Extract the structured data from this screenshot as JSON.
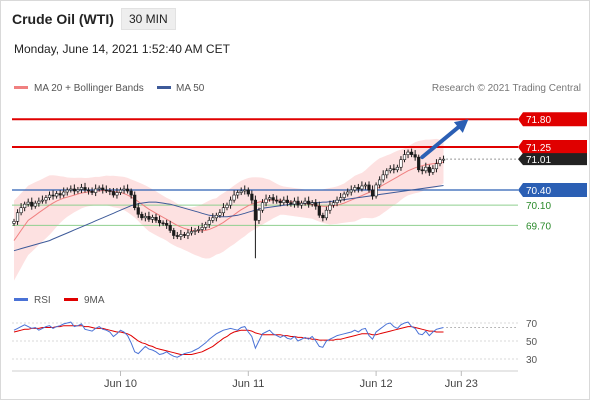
{
  "header": {
    "title": "Crude Oil (WTI)",
    "timeframe": "30 MIN",
    "datetime": "Monday, June 14, 2021 1:52:40 AM CET"
  },
  "colors": {
    "price_up": "#1a1a1a",
    "price_down": "#1a1a1a",
    "resistance": "#e00000",
    "support": "#8fcf8f",
    "pivot": "#2b5fb4",
    "bollinger_fill": "#fde1e1",
    "ma20": "#f08080",
    "ma50": "#3d5a99",
    "rsi": "#4a72d6",
    "rsi_ma": "#e00000",
    "arrow": "#2b5fb4"
  },
  "chart_data": [
    {
      "type": "candlestick",
      "title": "",
      "legend": [
        {
          "name": "MA 20 + Bollinger Bands",
          "color": "#f08080"
        },
        {
          "name": "MA 50",
          "color": "#3d5a99"
        }
      ],
      "credit": "Research © 2021 Trading Central",
      "x_tick_labels": [
        "Jun 10",
        "Jun 11",
        "Jun 12",
        "Jun 23"
      ],
      "x_ticks_index": [
        30,
        66,
        102,
        126
      ],
      "x_count": 128,
      "ylim": [
        68.6,
        72.2
      ],
      "current_price": "71.01",
      "levels": [
        {
          "label": "71.80",
          "value": 71.8,
          "kind": "resistance"
        },
        {
          "label": "71.25",
          "value": 71.25,
          "kind": "resistance"
        },
        {
          "label": "70.40",
          "value": 70.4,
          "kind": "pivot"
        },
        {
          "label": "70.10",
          "value": 70.1,
          "kind": "support"
        },
        {
          "label": "69.70",
          "value": 69.7,
          "kind": "support"
        }
      ],
      "arrow": {
        "from_index": 115,
        "from_value": 71.05,
        "to_index": 128,
        "to_value": 71.8
      },
      "close": [
        69.78,
        69.95,
        70.05,
        70.12,
        70.16,
        70.08,
        70.14,
        70.18,
        70.2,
        70.25,
        70.3,
        70.28,
        70.33,
        70.3,
        70.36,
        70.4,
        70.42,
        70.38,
        70.41,
        70.45,
        70.4,
        70.38,
        70.35,
        70.42,
        70.44,
        70.4,
        70.39,
        70.37,
        70.3,
        70.35,
        70.4,
        70.42,
        70.38,
        70.3,
        70.05,
        69.92,
        69.85,
        69.88,
        69.82,
        69.86,
        69.8,
        69.75,
        69.74,
        69.7,
        69.6,
        69.5,
        69.48,
        69.52,
        69.5,
        69.55,
        69.58,
        69.6,
        69.62,
        69.66,
        69.72,
        69.8,
        69.85,
        69.9,
        69.95,
        70.05,
        70.1,
        70.2,
        70.3,
        70.35,
        70.38,
        70.4,
        70.32,
        70.2,
        69.8,
        70.0,
        70.15,
        70.22,
        70.25,
        70.2,
        70.18,
        70.15,
        70.2,
        70.15,
        70.12,
        70.18,
        70.1,
        70.14,
        70.18,
        70.12,
        70.15,
        70.08,
        69.9,
        69.85,
        70.0,
        70.1,
        70.15,
        70.2,
        70.25,
        70.32,
        70.36,
        70.4,
        70.45,
        70.42,
        70.48,
        70.5,
        70.4,
        70.28,
        70.5,
        70.6,
        70.7,
        70.78,
        70.82,
        70.8,
        70.85,
        71.0,
        71.1,
        71.15,
        71.1,
        71.05,
        70.8,
        70.78,
        70.85,
        70.75,
        70.82,
        70.92,
        71.0,
        71.01
      ],
      "series": [
        {
          "name": "MA 20 + Bollinger Bands",
          "values": [
            69.4,
            69.5,
            69.6,
            69.7,
            69.8,
            69.85,
            69.9,
            69.95,
            70.0,
            70.05,
            70.1,
            70.14,
            70.18,
            70.21,
            70.24,
            70.26,
            70.28,
            70.3,
            70.32,
            70.34,
            70.35,
            70.36,
            70.37,
            70.38,
            70.38,
            70.39,
            70.39,
            70.38,
            70.37,
            70.36,
            70.35,
            70.33,
            70.3,
            70.26,
            70.22,
            70.17,
            70.12,
            70.07,
            70.02,
            69.98,
            69.94,
            69.9,
            69.86,
            69.82,
            69.78,
            69.74,
            69.7,
            69.67,
            69.64,
            69.62,
            69.6,
            69.59,
            69.59,
            69.59,
            69.6,
            69.62,
            69.65,
            69.68,
            69.72,
            69.76,
            69.81,
            69.86,
            69.91,
            69.96,
            70.01,
            70.05,
            70.09,
            70.12,
            70.14,
            70.16,
            70.18,
            70.19,
            70.2,
            70.2,
            70.2,
            70.2,
            70.19,
            70.18,
            70.17,
            70.16,
            70.15,
            70.14,
            70.13,
            70.12,
            70.11,
            70.1,
            70.09,
            70.08,
            70.08,
            70.08,
            70.09,
            70.1,
            70.12,
            70.14,
            70.17,
            70.2,
            70.23,
            70.26,
            70.29,
            70.32,
            70.35,
            70.38,
            70.42,
            70.46,
            70.5,
            70.54,
            70.58,
            70.62,
            70.66,
            70.7,
            70.74,
            70.78,
            70.81,
            70.84,
            70.86,
            70.88,
            70.9,
            70.91,
            70.92,
            70.93,
            70.94,
            70.95
          ]
        },
        {
          "name": "MA 50",
          "values": [
            69.2,
            69.22,
            69.24,
            69.26,
            69.28,
            69.3,
            69.32,
            69.34,
            69.36,
            69.38,
            69.4,
            69.43,
            69.46,
            69.49,
            69.52,
            69.55,
            69.58,
            69.61,
            69.64,
            69.67,
            69.7,
            69.73,
            69.76,
            69.79,
            69.82,
            69.85,
            69.88,
            69.91,
            69.94,
            69.97,
            70.0,
            70.03,
            70.06,
            70.09,
            70.11,
            70.13,
            70.14,
            70.15,
            70.16,
            70.16,
            70.16,
            70.15,
            70.14,
            70.13,
            70.12,
            70.1,
            70.08,
            70.06,
            70.04,
            70.02,
            70.0,
            69.98,
            69.96,
            69.94,
            69.92,
            69.9,
            69.89,
            69.88,
            69.87,
            69.87,
            69.87,
            69.88,
            69.89,
            69.9,
            69.92,
            69.94,
            69.96,
            69.98,
            70.0,
            70.02,
            70.04,
            70.05,
            70.06,
            70.07,
            70.08,
            70.09,
            70.1,
            70.11,
            70.12,
            70.12,
            70.13,
            70.13,
            70.14,
            70.14,
            70.15,
            70.15,
            70.15,
            70.16,
            70.16,
            70.17,
            70.18,
            70.19,
            70.2,
            70.21,
            70.22,
            70.23,
            70.24,
            70.25,
            70.26,
            70.27,
            70.28,
            70.29,
            70.3,
            70.31,
            70.32,
            70.33,
            70.34,
            70.35,
            70.36,
            70.37,
            70.38,
            70.39,
            70.4,
            70.41,
            70.42,
            70.43,
            70.44,
            70.45,
            70.46,
            70.47,
            70.48,
            70.49
          ]
        }
      ]
    },
    {
      "type": "line",
      "title": "",
      "legend": [
        {
          "name": "RSI",
          "color": "#4a72d6"
        },
        {
          "name": "9MA",
          "color": "#e00000"
        }
      ],
      "ylim": [
        20,
        80
      ],
      "y_ticks": [
        70,
        50,
        30
      ],
      "series": [
        {
          "name": "RSI",
          "values": [
            62,
            64,
            66,
            68,
            66,
            64,
            65,
            62,
            64,
            66,
            67,
            64,
            66,
            67,
            69,
            70,
            71,
            66,
            67,
            69,
            63,
            62,
            61,
            64,
            66,
            63,
            62,
            60,
            55,
            58,
            62,
            60,
            56,
            48,
            38,
            36,
            40,
            44,
            41,
            40,
            38,
            35,
            36,
            38,
            35,
            33,
            32,
            34,
            36,
            37,
            38,
            40,
            42,
            45,
            48,
            52,
            55,
            58,
            60,
            62,
            63,
            64,
            63,
            62,
            65,
            66,
            60,
            55,
            42,
            50,
            58,
            60,
            62,
            58,
            56,
            54,
            56,
            53,
            52,
            55,
            50,
            52,
            54,
            52,
            55,
            50,
            44,
            43,
            50,
            52,
            54,
            56,
            57,
            58,
            59,
            60,
            62,
            60,
            63,
            64,
            56,
            52,
            60,
            63,
            66,
            69,
            70,
            66,
            64,
            68,
            70,
            71,
            66,
            64,
            58,
            57,
            61,
            56,
            60,
            63,
            64,
            65
          ]
        },
        {
          "name": "9MA",
          "values": [
            60,
            61,
            62,
            63,
            63,
            64,
            64,
            64,
            65,
            65,
            65,
            65,
            66,
            66,
            67,
            67,
            67,
            67,
            67,
            67,
            66,
            66,
            65,
            64,
            64,
            64,
            63,
            62,
            61,
            60,
            60,
            59,
            58,
            56,
            53,
            50,
            48,
            47,
            45,
            44,
            42,
            41,
            40,
            39,
            38,
            37,
            36,
            35,
            35,
            35,
            35,
            36,
            37,
            38,
            40,
            42,
            44,
            47,
            50,
            53,
            55,
            58,
            60,
            61,
            62,
            62,
            62,
            61,
            59,
            58,
            57,
            57,
            57,
            57,
            57,
            57,
            56,
            56,
            55,
            55,
            54,
            54,
            53,
            53,
            52,
            52,
            51,
            51,
            51,
            51,
            51,
            52,
            52,
            53,
            54,
            55,
            56,
            57,
            58,
            58,
            58,
            57,
            57,
            58,
            59,
            60,
            61,
            62,
            63,
            64,
            65,
            66,
            66,
            65,
            64,
            63,
            62,
            61,
            61,
            60,
            60,
            60
          ]
        }
      ]
    }
  ]
}
